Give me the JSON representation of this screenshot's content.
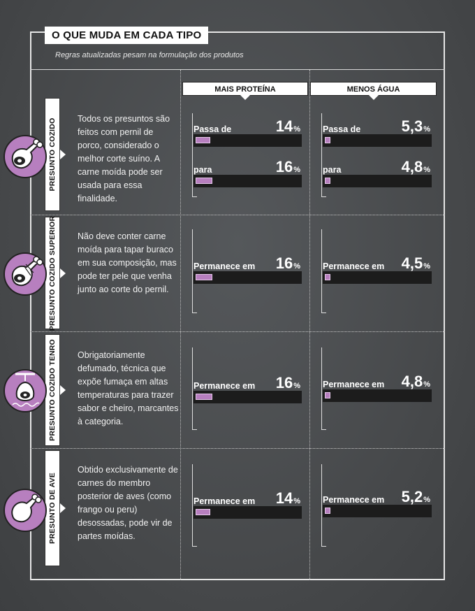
{
  "header": {
    "title": "O QUE MUDA EM CADA TIPO",
    "subtitle": "Regras atualizadas pesam na formulação dos produtos"
  },
  "columns": {
    "protein": "MAIS PROTEÍNA",
    "water": "MENOS ÁGUA"
  },
  "colors": {
    "accent": "#b77fbf",
    "bar": "#1c1c1c",
    "background": "#4a4d50"
  },
  "rows": [
    {
      "tab": "PRESUNTO COZIDO",
      "icon": "ham-leg-icon",
      "description": "Todos os presuntos são feitos com pernil de porco, considerado o melhor corte suíno. A carne moída pode ser usada para essa finalidade.",
      "protein": [
        {
          "label": "Passa de",
          "value": "14",
          "unit": "%",
          "fill": 0.14
        },
        {
          "label": "para",
          "value": "16",
          "unit": "%",
          "fill": 0.16
        }
      ],
      "water": [
        {
          "label": "Passa de",
          "value": "5,3",
          "unit": "%",
          "fill": 0.053
        },
        {
          "label": "para",
          "value": "4,8",
          "unit": "%",
          "fill": 0.048
        }
      ]
    },
    {
      "tab": "PRESUNTO COZIDO SUPERIOR",
      "icon": "ham-leg-bow-icon",
      "description": "Não deve conter carne moída para tapar buraco em sua composição, mas pode ter pele que venha junto ao corte do pernil.",
      "protein": [
        {
          "label": "Permanece em",
          "value": "16",
          "unit": "%",
          "fill": 0.16
        }
      ],
      "water": [
        {
          "label": "Permanece em",
          "value": "4,5",
          "unit": "%",
          "fill": 0.045
        }
      ]
    },
    {
      "tab": "PRESUNTO COZIDO TENRO",
      "icon": "smoked-ham-icon",
      "description": "Obrigatoriamente defumado, técnica que expõe fumaça em altas temperaturas para trazer sabor e cheiro, marcantes à categoria.",
      "protein": [
        {
          "label": "Permanece em",
          "value": "16",
          "unit": "%",
          "fill": 0.16
        }
      ],
      "water": [
        {
          "label": "Permanece em",
          "value": "4,8",
          "unit": "%",
          "fill": 0.048
        }
      ]
    },
    {
      "tab": "PRESUNTO DE AVE",
      "icon": "poultry-leg-icon",
      "description": "Obtido exclusivamente de carnes do membro posterior de aves (como frango ou peru) desossadas, pode vir de partes moídas.",
      "protein": [
        {
          "label": "Permanece em",
          "value": "14",
          "unit": "%",
          "fill": 0.14
        }
      ],
      "water": [
        {
          "label": "Permanece em",
          "value": "5,2",
          "unit": "%",
          "fill": 0.052
        }
      ]
    }
  ]
}
